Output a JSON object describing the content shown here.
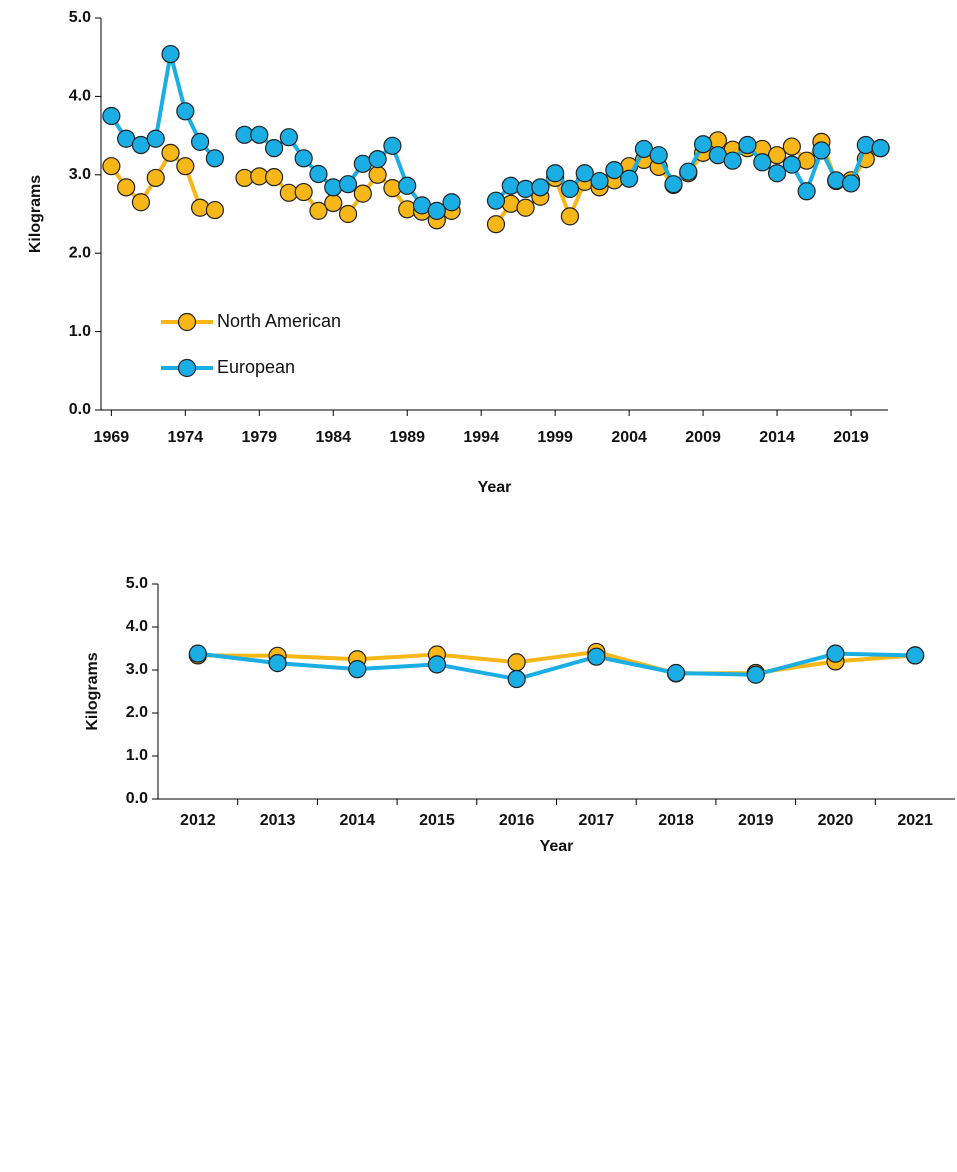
{
  "chart_data": [
    {
      "type": "line",
      "x": [
        1969,
        1970,
        1971,
        1972,
        1973,
        1974,
        1975,
        1976,
        1977,
        1978,
        1979,
        1980,
        1981,
        1982,
        1983,
        1984,
        1985,
        1986,
        1987,
        1988,
        1989,
        1990,
        1991,
        1992,
        1993,
        1994,
        1995,
        1996,
        1997,
        1998,
        1999,
        2000,
        2001,
        2002,
        2003,
        2004,
        2005,
        2006,
        2007,
        2008,
        2009,
        2010,
        2011,
        2012,
        2013,
        2014,
        2015,
        2016,
        2017,
        2018,
        2019,
        2020,
        2021
      ],
      "series": [
        {
          "name": "North American",
          "color": "#F7B718",
          "values": [
            3.11,
            2.84,
            2.65,
            2.96,
            3.28,
            3.11,
            2.58,
            2.55,
            null,
            2.96,
            2.98,
            2.97,
            2.77,
            2.78,
            2.54,
            2.64,
            2.5,
            2.76,
            3.0,
            2.83,
            2.56,
            2.53,
            2.42,
            2.54,
            null,
            null,
            2.37,
            2.63,
            2.58,
            2.72,
            2.96,
            2.47,
            2.91,
            2.84,
            2.93,
            3.11,
            3.19,
            3.1,
            2.87,
            3.02,
            3.28,
            3.44,
            3.32,
            3.34,
            3.33,
            3.25,
            3.36,
            3.18,
            3.42,
            2.92,
            2.93,
            3.2,
            3.34
          ]
        },
        {
          "name": "European",
          "color": "#1BAEE4",
          "values": [
            3.75,
            3.46,
            3.38,
            3.46,
            4.54,
            3.81,
            3.42,
            3.21,
            null,
            3.51,
            3.51,
            3.34,
            3.48,
            3.21,
            3.01,
            2.84,
            2.88,
            3.14,
            3.2,
            3.37,
            2.86,
            2.61,
            2.54,
            2.65,
            null,
            null,
            2.67,
            2.86,
            2.82,
            2.84,
            3.02,
            2.82,
            3.02,
            2.92,
            3.06,
            2.95,
            3.33,
            3.25,
            2.88,
            3.04,
            3.39,
            3.25,
            3.18,
            3.38,
            3.16,
            3.02,
            3.13,
            2.79,
            3.31,
            2.93,
            2.89,
            3.38,
            3.34
          ]
        }
      ],
      "xlim": [
        1968.3,
        2021.5
      ],
      "xticks": [
        1969,
        1974,
        1979,
        1984,
        1989,
        1994,
        1999,
        2004,
        2009,
        2014,
        2019
      ],
      "ylim": [
        0,
        5
      ],
      "yticks": [
        {
          "value": 0,
          "label": "0.0"
        },
        {
          "value": 1,
          "label": "1.0"
        },
        {
          "value": 2,
          "label": "2.0"
        },
        {
          "value": 3,
          "label": "3.0"
        },
        {
          "value": 4,
          "label": "4.0"
        },
        {
          "value": 5,
          "label": "5.0"
        }
      ],
      "xlabel": "Year",
      "ylabel": "Kilograms",
      "legend": "lower left"
    },
    {
      "type": "line",
      "categories": [
        "2012",
        "2013",
        "2014",
        "2015",
        "2016",
        "2017",
        "2018",
        "2019",
        "2020",
        "2021"
      ],
      "series": [
        {
          "color": "#F7B718",
          "values": [
            3.34,
            3.33,
            3.25,
            3.36,
            3.18,
            3.42,
            2.92,
            2.93,
            3.2,
            3.34
          ]
        },
        {
          "color": "#1BAEE4",
          "values": [
            3.38,
            3.16,
            3.02,
            3.13,
            2.79,
            3.31,
            2.93,
            2.89,
            3.38,
            3.34
          ]
        }
      ],
      "ylim": [
        0,
        5
      ],
      "yticks": [
        {
          "value": 0,
          "label": "0.0"
        },
        {
          "value": 1,
          "label": "1.0"
        },
        {
          "value": 2,
          "label": "2.0"
        },
        {
          "value": 3,
          "label": "3.0"
        },
        {
          "value": 4,
          "label": "4.0"
        },
        {
          "value": 5,
          "label": "5.0"
        }
      ],
      "xlabel": "Year",
      "ylabel": "Kilograms"
    }
  ]
}
